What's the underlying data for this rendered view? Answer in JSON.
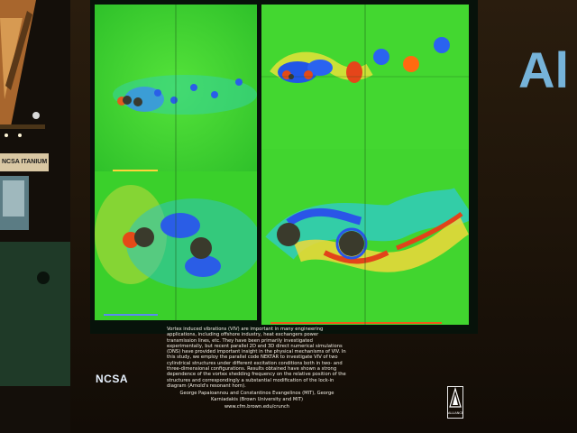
{
  "caption": {
    "body": "Vortex induced vibrations (VIV) are important in many engineering applications, including offshore industry, heat exchangers power transmission lines, etc. They have been primarily investigated experimentally, but recent parallel 2D and 3D direct numerical simulations (DNS) have provided important insight in the physical mechanisms of VIV. In this study, we employ the parallel code NEKTAR to investigate VIV of two cylindrical structures under different excitation conditions both in two- and three-dimensional configurations. Results obtained have shown a strong dependence of the vortex shedding frequency on the relative position of the structures and correspondingly a substantial modification of the lock-in diagram (Arnold's resonant horn).",
    "authors": "George Papaioannou and Constantinos Evangelinos (MIT), George Karniadakis (Brown University and MIT)",
    "url": "www.cfm.brown.edu/crunch"
  },
  "logos": {
    "ncsa": "NCSA",
    "alliance": "ALLIANCE",
    "booth_sign": "NCSA ITANIUM",
    "background_letters": "Al"
  },
  "colors": {
    "field_green": "#3cd52a",
    "vortex_blue": "#1f5fe0",
    "vortex_red": "#e23a1a",
    "vortex_yellow": "#e8e23a",
    "cylinder": "#3a3a2c"
  }
}
